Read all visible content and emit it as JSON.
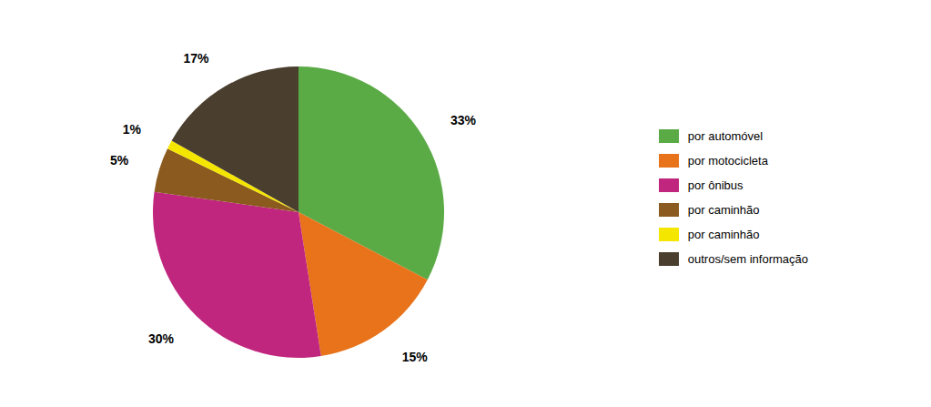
{
  "chart_data": {
    "type": "pie",
    "categories": [
      "por automóvel",
      "por motocicleta",
      "por ônibus",
      "por caminhão",
      "por caminhão",
      "outros/sem informação"
    ],
    "values": [
      33,
      15,
      30,
      5,
      1,
      17
    ],
    "value_labels": [
      "33%",
      "15%",
      "30%",
      "5%",
      "1%",
      "17%"
    ],
    "colors": [
      "#5aab46",
      "#e8731a",
      "#c0267e",
      "#8b5a1e",
      "#f5e600",
      "#4a3f2f"
    ],
    "data_labels": true,
    "legend": "right"
  }
}
